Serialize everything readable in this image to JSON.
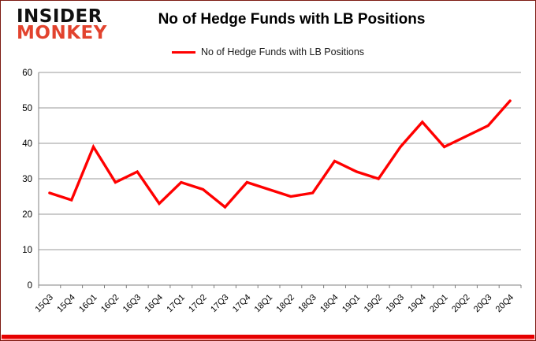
{
  "logo": {
    "line1": "INSIDER",
    "line2": "MONKEY"
  },
  "title": "No of Hedge Funds with LB Positions",
  "legend": {
    "label": "No of Hedge Funds with LB Positions"
  },
  "colors": {
    "line": "#ff0000",
    "logo_red": "#e2432e",
    "grid": "#9a9a9a",
    "axis": "#808080",
    "border": "#7c1a12",
    "bottom_bar": "#e60000"
  },
  "chart_data": {
    "type": "line",
    "title": "No of Hedge Funds with LB Positions",
    "categories": [
      "15Q3",
      "15Q4",
      "16Q1",
      "16Q2",
      "16Q3",
      "16Q4",
      "17Q1",
      "17Q2",
      "17Q3",
      "17Q4",
      "18Q1",
      "18Q2",
      "18Q3",
      "18Q4",
      "19Q1",
      "19Q2",
      "19Q3",
      "19Q4",
      "20Q1",
      "20Q2",
      "20Q3",
      "20Q4"
    ],
    "series": [
      {
        "name": "No of Hedge Funds with LB Positions",
        "color": "#ff0000",
        "values": [
          26,
          24,
          39,
          29,
          32,
          23,
          29,
          27,
          22,
          29,
          27,
          25,
          26,
          35,
          32,
          30,
          39,
          46,
          39,
          42,
          45,
          52
        ]
      }
    ],
    "xlabel": "",
    "ylabel": "",
    "ylim": [
      0,
      60
    ],
    "yticks": [
      0,
      10,
      20,
      30,
      40,
      50,
      60
    ],
    "grid": true,
    "legend_position": "top-center",
    "x_label_rotation": -45
  }
}
